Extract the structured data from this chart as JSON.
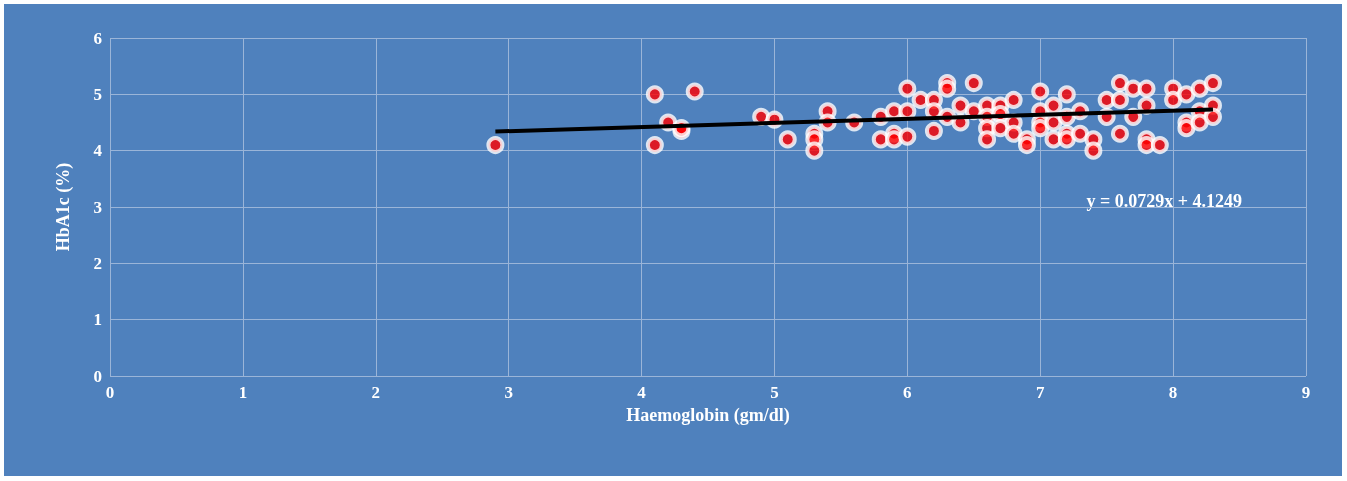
{
  "chart_data": {
    "type": "scatter",
    "xlabel": "Haemoglobin (gm/dl)",
    "ylabel": "HbA1c (%)",
    "xlim": [
      0,
      9
    ],
    "xticks": [
      0,
      1,
      2,
      3,
      4,
      5,
      6,
      7,
      8,
      9
    ],
    "ylim": [
      0,
      6
    ],
    "yticks": [
      0,
      1,
      2,
      3,
      4,
      5,
      6
    ],
    "grid": true,
    "marker": "circle",
    "annotations": [
      "y = 0.0729x + 4.1249"
    ],
    "series": [
      {
        "color": "#ff0000",
        "x": [
          2.9,
          4.1,
          4.1,
          4.2,
          4.3,
          4.3,
          4.4,
          4.9,
          5.0,
          5.1,
          5.3,
          5.3,
          5.3,
          5.4,
          5.4,
          5.6,
          5.8,
          5.8,
          5.9,
          5.9,
          5.9,
          6.0,
          6.0,
          6.0,
          6.1,
          6.2,
          6.2,
          6.2,
          6.3,
          6.3,
          6.3,
          6.4,
          6.4,
          6.5,
          6.5,
          6.6,
          6.6,
          6.6,
          6.6,
          6.7,
          6.7,
          6.7,
          6.8,
          6.8,
          6.8,
          6.9,
          6.9,
          7.0,
          7.0,
          7.0,
          7.0,
          7.1,
          7.1,
          7.1,
          7.2,
          7.2,
          7.2,
          7.2,
          7.3,
          7.3,
          7.4,
          7.4,
          7.5,
          7.5,
          7.6,
          7.6,
          7.6,
          7.7,
          7.7,
          7.8,
          7.8,
          7.8,
          7.8,
          7.9,
          8.0,
          8.0,
          8.1,
          8.1,
          8.1,
          8.2,
          8.2,
          8.2,
          8.3,
          8.3,
          8.3
        ],
        "values": [
          4.1,
          5.0,
          4.1,
          4.5,
          4.35,
          4.4,
          5.05,
          4.6,
          4.55,
          4.2,
          4.3,
          4.2,
          4.0,
          4.7,
          4.5,
          4.5,
          4.6,
          4.2,
          4.7,
          4.3,
          4.2,
          5.1,
          4.7,
          4.25,
          4.9,
          4.9,
          4.7,
          4.35,
          5.2,
          5.1,
          4.6,
          4.8,
          4.5,
          5.2,
          4.7,
          4.8,
          4.6,
          4.4,
          4.2,
          4.8,
          4.65,
          4.4,
          4.9,
          4.5,
          4.3,
          4.2,
          4.1,
          5.05,
          4.7,
          4.5,
          4.4,
          4.8,
          4.5,
          4.2,
          5.0,
          4.6,
          4.3,
          4.2,
          4.7,
          4.3,
          4.2,
          4.0,
          4.9,
          4.6,
          5.2,
          4.9,
          4.3,
          5.1,
          4.6,
          5.1,
          4.8,
          4.2,
          4.1,
          4.1,
          5.1,
          4.9,
          5.0,
          4.5,
          4.4,
          5.1,
          4.7,
          4.5,
          5.2,
          4.8,
          4.6
        ]
      },
      {
        "type": "line",
        "color": "#000000",
        "marker": "none",
        "x": [
          2.9,
          8.3
        ],
        "values": [
          4.34,
          4.73
        ]
      }
    ]
  }
}
